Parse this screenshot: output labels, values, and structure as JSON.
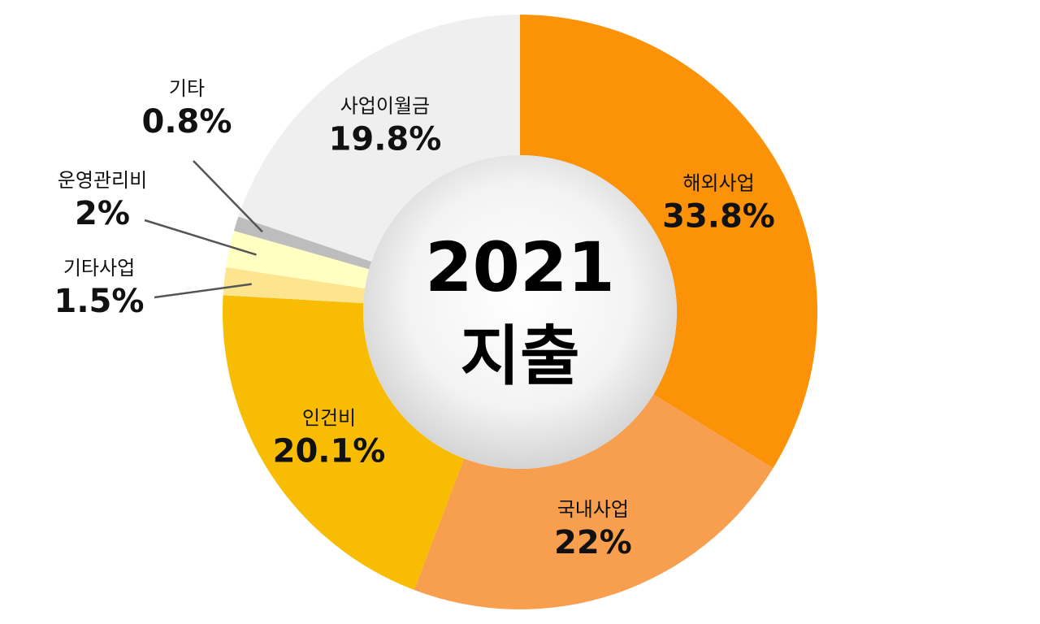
{
  "chart_data": {
    "type": "pie",
    "center_title": "2021",
    "center_subtitle": "지출",
    "slices": [
      {
        "label": "해외사업",
        "value": 33.8,
        "display": "33.8%",
        "color": "#fb9208"
      },
      {
        "label": "국내사업",
        "value": 22,
        "display": "22%",
        "color": "#f89e4f"
      },
      {
        "label": "인건비",
        "value": 20.1,
        "display": "20.1%",
        "color": "#f8bd03"
      },
      {
        "label": "기타사업",
        "value": 1.5,
        "display": "1.5%",
        "color": "#fde48f"
      },
      {
        "label": "운영관리비",
        "value": 2,
        "display": "2%",
        "color": "#ffffc2"
      },
      {
        "label": "기타",
        "value": 0.8,
        "display": "0.8%",
        "color": "#bdbdbd"
      },
      {
        "label": "사업이월금",
        "value": 19.8,
        "display": "19.8%",
        "color": "#efefef"
      }
    ]
  }
}
